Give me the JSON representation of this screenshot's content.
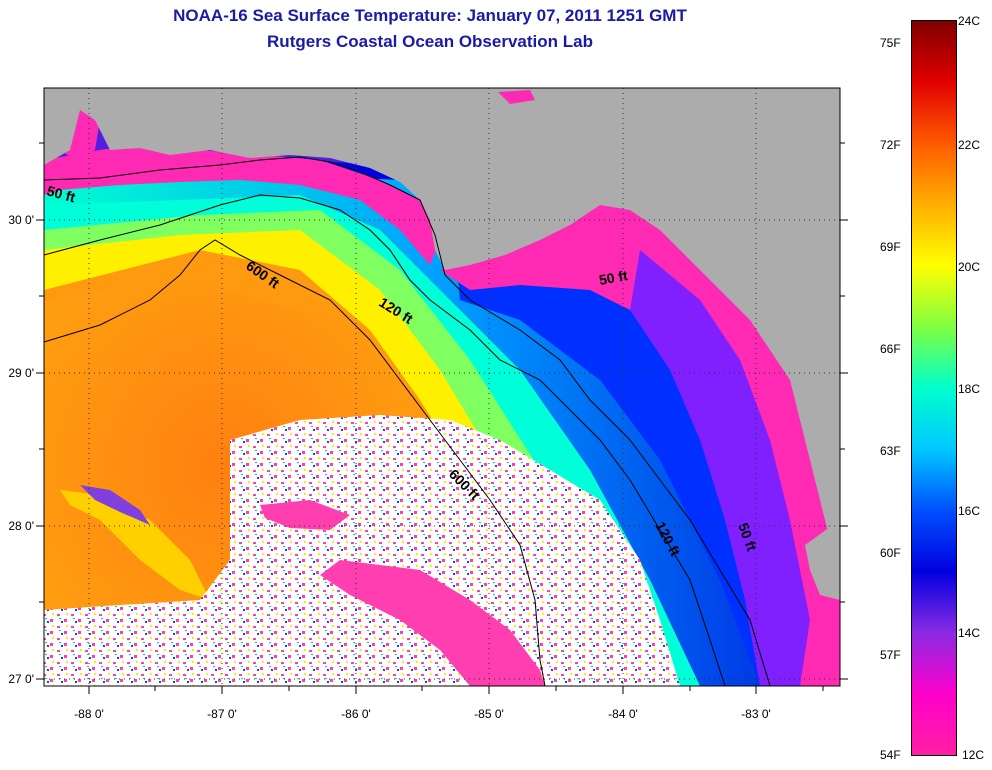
{
  "title": "NOAA-16 Sea Surface Temperature:  January 07, 2011 1251 GMT",
  "subtitle": "Rutgers Coastal Ocean Observation Lab",
  "map": {
    "lon_labels": [
      "-88 0'",
      "-87 0'",
      "-86 0'",
      "-85 0'",
      "-84 0'",
      "-83 0'"
    ],
    "lat_labels": [
      "30 0'",
      "29 0'",
      "28 0'",
      "27 0'"
    ],
    "contours": [
      {
        "label": "50 ft",
        "depth_ft": 50
      },
      {
        "label": "120 ft",
        "depth_ft": 120
      },
      {
        "label": "600 ft",
        "depth_ft": 600
      }
    ],
    "colors": {
      "land": "#acacac",
      "contour": "#000000"
    }
  },
  "colorbar": {
    "fahrenheit": [
      "75F",
      "72F",
      "69F",
      "66F",
      "63F",
      "60F",
      "57F",
      "54F"
    ],
    "celsius": [
      "24C",
      "22C",
      "20C",
      "18C",
      "16C",
      "14C",
      "12C"
    ],
    "stops": [
      "#800000",
      "#e00000",
      "#ff5a00",
      "#ffae00",
      "#ffff00",
      "#80ff40",
      "#00ffcc",
      "#00c8ff",
      "#0050ff",
      "#0000e0",
      "#8a2be2",
      "#ff00cc",
      "#ff1fa3"
    ]
  }
}
